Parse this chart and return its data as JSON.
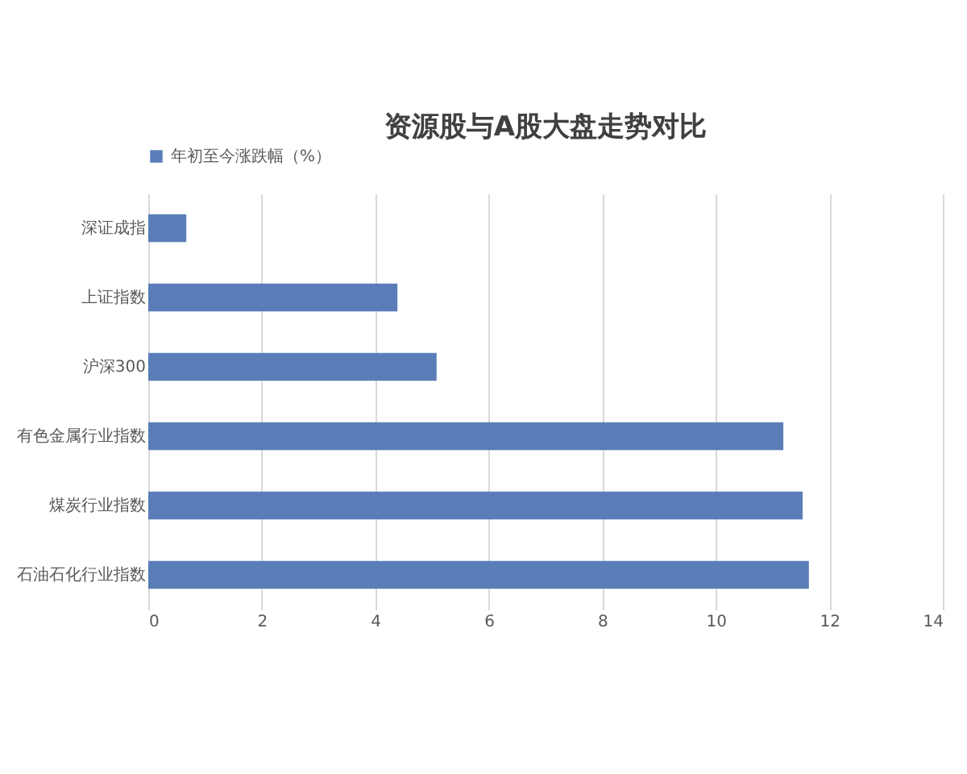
{
  "chart_data": {
    "type": "bar",
    "orientation": "horizontal",
    "title": "资源股与A股大盘走势对比",
    "categories": [
      "深证成指",
      "上证指数",
      "沪深300",
      "有色金属行业指数",
      "煤炭行业指数",
      "石油石化行业指数"
    ],
    "series": [
      {
        "name": "年初至今涨跌幅（%）",
        "color": "#5a7db8",
        "values": [
          0.67,
          4.39,
          5.08,
          11.19,
          11.53,
          11.64
        ]
      }
    ],
    "xlim": [
      0,
      14
    ],
    "xticks": [
      0,
      2,
      4,
      6,
      8,
      10,
      12,
      14
    ],
    "grid": "x",
    "legend": "top"
  }
}
